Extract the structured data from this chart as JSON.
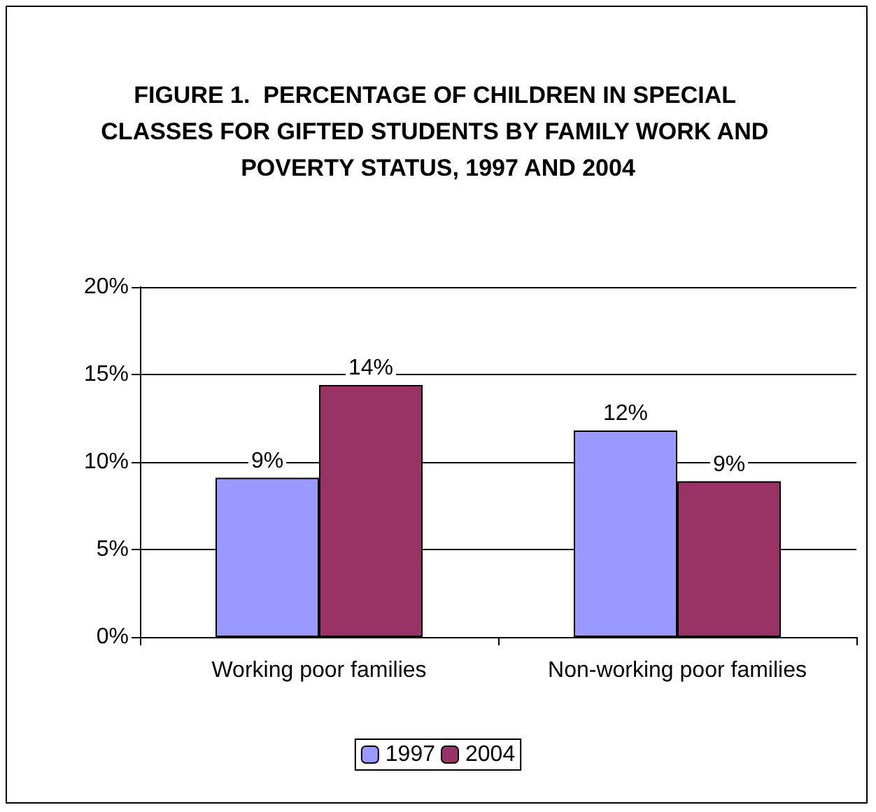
{
  "chart_data": {
    "type": "bar",
    "title": "FIGURE 1.  PERCENTAGE OF CHILDREN IN SPECIAL CLASSES FOR GIFTED STUDENTS BY FAMILY WORK AND POVERTY STATUS, 1997 AND 2004",
    "categories": [
      "Working poor families",
      "Non-working poor families"
    ],
    "series": [
      {
        "name": "1997",
        "color": "#9999ff",
        "values": [
          9.1,
          11.8
        ],
        "value_labels": [
          "9%",
          "12%"
        ]
      },
      {
        "name": "2004",
        "color": "#993366",
        "values": [
          14.4,
          8.9
        ],
        "value_labels": [
          "14%",
          "9%"
        ]
      }
    ],
    "ylim": [
      0,
      20
    ],
    "yticks": [
      {
        "value": 0,
        "label": "0%"
      },
      {
        "value": 5,
        "label": "5%"
      },
      {
        "value": 10,
        "label": "10%"
      },
      {
        "value": 15,
        "label": "15%"
      },
      {
        "value": 20,
        "label": "20%"
      }
    ],
    "grid": "y",
    "legend": "bottom"
  }
}
